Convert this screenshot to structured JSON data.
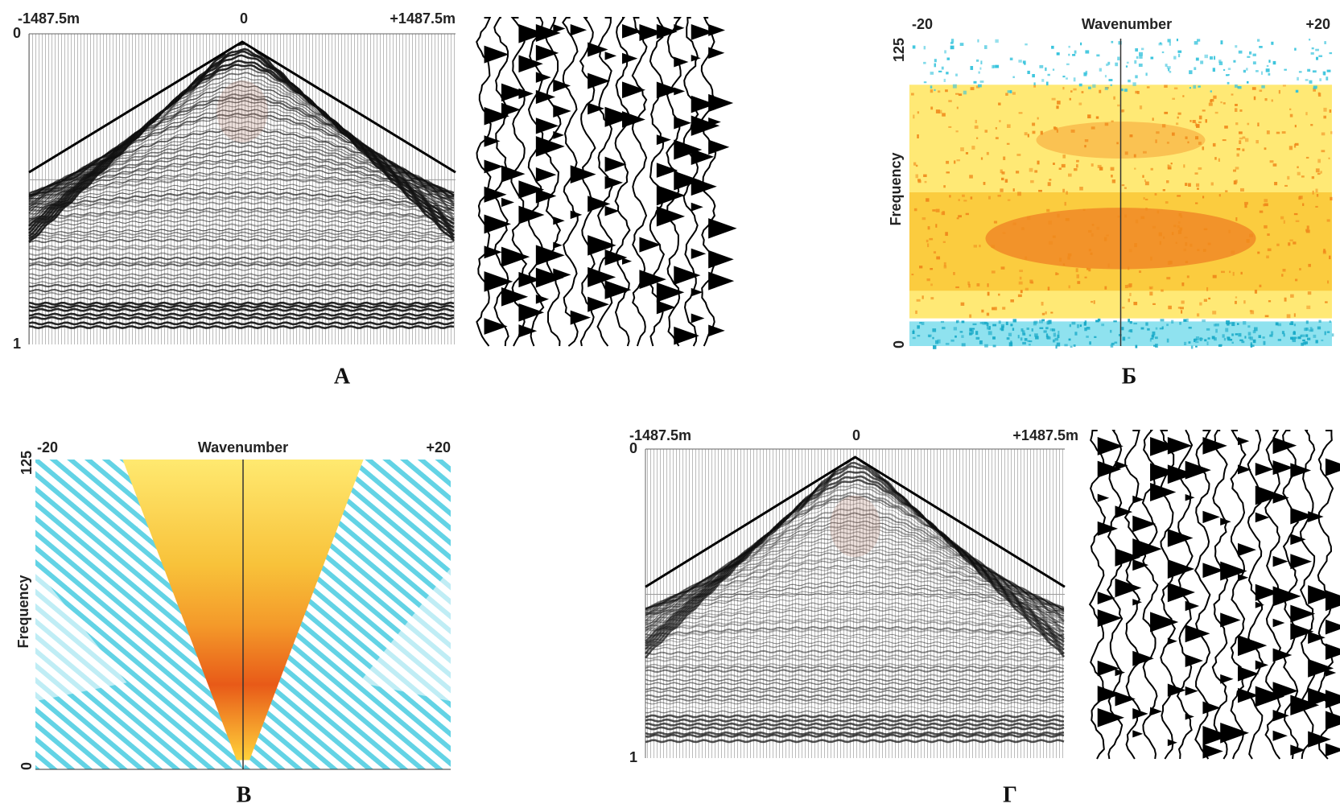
{
  "panels": [
    {
      "label": "А",
      "top_left": "-1487.5m",
      "top_center": "0",
      "top_right": "+1487.5m",
      "axis_top": "0",
      "axis_bottom": "1"
    },
    {
      "label": "Б",
      "axis_top": "125",
      "left": "-20",
      "title": "Wavenumber",
      "right": "+20",
      "y_label": "Frequency",
      "axis_bottom": "0"
    },
    {
      "label": "В",
      "axis_top": "125",
      "left": "-20",
      "title": "Wavenumber",
      "right": "+20",
      "y_label": "Frequency",
      "axis_bottom": "0"
    },
    {
      "label": "Г",
      "top_left": "-1487.5m",
      "top_center": "0",
      "top_right": "+1487.5m",
      "axis_top": "0",
      "axis_bottom": "1"
    }
  ]
}
